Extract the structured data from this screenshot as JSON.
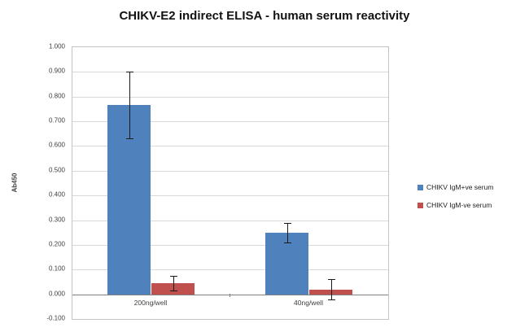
{
  "page": {
    "background": "#ffffff"
  },
  "chart_data": {
    "type": "bar",
    "title": "CHIKV-E2 indirect ELISA - human serum reactivity",
    "ylabel": "Ab450",
    "xlabel": "",
    "categories": [
      "200ng/well",
      "40ng/well"
    ],
    "series": [
      {
        "name": "CHIKV IgM+ve serum",
        "color": "#4F81BD",
        "values": [
          0.765,
          0.25
        ],
        "errors": [
          0.135,
          0.04
        ]
      },
      {
        "name": "CHIKV IgM-ve serum",
        "color": "#C0504D",
        "values": [
          0.045,
          0.02
        ],
        "errors": [
          0.03,
          0.04
        ]
      }
    ],
    "ylim": [
      -0.1,
      1.0
    ],
    "ytick_step": 0.1,
    "ytick_decimals": 3,
    "grid": true,
    "error_bars": true,
    "legend_position": "right",
    "colors": {
      "gridline": "#d9d9d9",
      "axis": "#808080",
      "error_bar": "#1a1a1a"
    }
  }
}
